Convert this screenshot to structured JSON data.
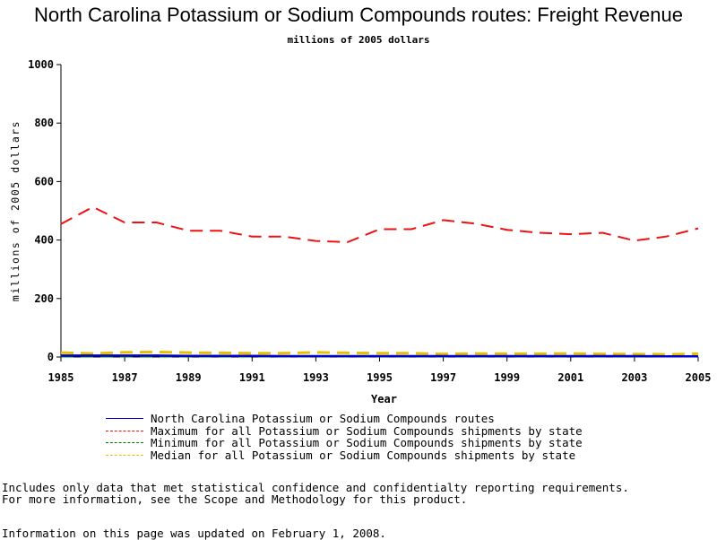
{
  "chart_data": {
    "type": "line",
    "title": "North Carolina Potassium or Sodium Compounds routes: Freight Revenue",
    "subtitle": "millions of 2005 dollars",
    "xlabel": "Year",
    "ylabel": "millions of 2005 dollars",
    "xlim": [
      1985,
      2005
    ],
    "ylim": [
      0,
      1000
    ],
    "x_ticks": [
      "1985",
      "1987",
      "1989",
      "1991",
      "1993",
      "1995",
      "1997",
      "1999",
      "2001",
      "2003",
      "2005"
    ],
    "y_ticks": [
      "0",
      "200",
      "400",
      "600",
      "800",
      "1000"
    ],
    "grid": false,
    "legend_position": "bottom",
    "x": [
      1985,
      1986,
      1987,
      1988,
      1989,
      1990,
      1991,
      1992,
      1993,
      1994,
      1995,
      1996,
      1997,
      1998,
      1999,
      2000,
      2001,
      2002,
      2003,
      2004,
      2005
    ],
    "series": [
      {
        "name": "North Carolina Potassium or Sodium Compounds routes",
        "color": "#0000cc",
        "dash": "solid",
        "values": [
          5,
          5,
          5,
          5,
          4,
          4,
          4,
          3,
          3,
          3,
          3,
          3,
          3,
          3,
          3,
          3,
          3,
          3,
          3,
          2,
          2
        ]
      },
      {
        "name": "Maximum for all Potassium or Sodium Compounds shipments by state",
        "color": "#ee1111",
        "dash": "dashed",
        "values": [
          455,
          513,
          460,
          460,
          432,
          432,
          412,
          412,
          397,
          393,
          437,
          437,
          468,
          456,
          435,
          425,
          420,
          425,
          398,
          412,
          440
        ]
      },
      {
        "name": "Minimum for all Potassium or Sodium Compounds shipments by state",
        "color": "#008000",
        "dash": "dashed",
        "values": [
          2,
          2,
          2,
          2,
          2,
          2,
          2,
          2,
          2,
          2,
          2,
          2,
          2,
          2,
          2,
          2,
          2,
          2,
          2,
          2,
          2
        ]
      },
      {
        "name": "Median for all Potassium or Sodium Compounds shipments by state",
        "color": "#e8c000",
        "dash": "dashed",
        "values": [
          15,
          12,
          16,
          17,
          15,
          14,
          13,
          13,
          16,
          14,
          13,
          13,
          10,
          12,
          11,
          11,
          12,
          10,
          10,
          9,
          11
        ]
      }
    ]
  },
  "notes": {
    "line1": "Includes only data that met statistical confidence and confidentialty reporting requirements.",
    "line2": "For more information, see the Scope and Methodology for this product.",
    "line3": "Information on this page was updated on February 1, 2008."
  }
}
